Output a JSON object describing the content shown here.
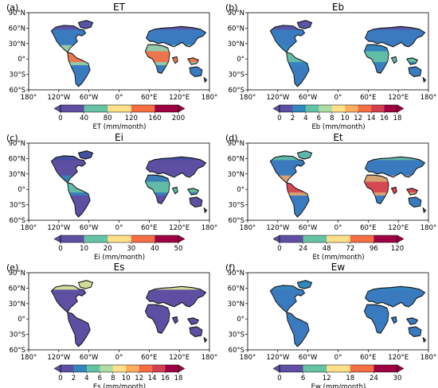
{
  "panels": [
    {
      "letter": "(a)",
      "title": "ET",
      "cbar_label": "ET (mm/month)",
      "ticks": [
        "0",
        "40",
        "80",
        "120",
        "160",
        "200"
      ],
      "style": "et"
    },
    {
      "letter": "(b)",
      "title": "Eb",
      "cbar_label": "Eb (mm/month)",
      "ticks": [
        "0",
        "2",
        "4",
        "6",
        "8",
        "10",
        "12",
        "14",
        "16",
        "18"
      ],
      "style": "eb"
    },
    {
      "letter": "(c)",
      "title": "Ei",
      "cbar_label": "Ei (mm/month)",
      "ticks": [
        "0",
        "10",
        "20",
        "30",
        "40",
        "50"
      ],
      "style": "ei"
    },
    {
      "letter": "(d)",
      "title": "Et",
      "cbar_label": "Et (mm/month)",
      "ticks": [
        "0",
        "24",
        "48",
        "72",
        "96",
        "120"
      ],
      "style": "et2"
    },
    {
      "letter": "(e)",
      "title": "Es",
      "cbar_label": "Es (mm/month)",
      "ticks": [
        "0",
        "2",
        "4",
        "6",
        "8",
        "10",
        "12",
        "14",
        "16",
        "18"
      ],
      "style": "es"
    },
    {
      "letter": "(f)",
      "title": "Ew",
      "cbar_label": "Ew (mm/month)",
      "ticks": [
        "0",
        "6",
        "12",
        "18",
        "24",
        "30"
      ],
      "style": "ew"
    }
  ],
  "lat_ticks": [
    "90°N",
    "60°N",
    "30°N",
    "0°",
    "30°S",
    "60°S"
  ],
  "lon_ticks": [
    "180°",
    "120°W",
    "60°W",
    "0°",
    "60°E",
    "120°E",
    "180°"
  ],
  "colormap": [
    "#5e4fa2",
    "#3288bd",
    "#66c2a5",
    "#abdda4",
    "#e6f598",
    "#fee08b",
    "#fdae61",
    "#f46d43",
    "#d53e4f",
    "#9e0142"
  ],
  "land_colors": {
    "et": {
      "base": "#3a7bbf",
      "tropics": "#f46d43",
      "subtropics": "#abdda4",
      "boreal": "#5e4fa2"
    },
    "eb": {
      "base": "#3a7bbf",
      "tropics": "#66c2a5",
      "subtropics": "#3288bd",
      "boreal": "#5e4fa2"
    },
    "ei": {
      "base": "#5e4fa2",
      "tropics": "#66c2a5",
      "subtropics": "#3288bd",
      "boreal": "#3f4fa0"
    },
    "et2": {
      "base": "#3a7bbf",
      "tropics": "#d53e4f",
      "subtropics": "#fdae61",
      "boreal": "#66c2a5"
    },
    "es": {
      "base": "#5e4fa2",
      "tropics": "#5e4fa2",
      "subtropics": "#5e4fa2",
      "boreal": "#e6f598"
    },
    "ew": {
      "base": "#3a7bbf",
      "tropics": "#3a7bbf",
      "subtropics": "#3a7bbf",
      "boreal": "#3288bd"
    }
  }
}
